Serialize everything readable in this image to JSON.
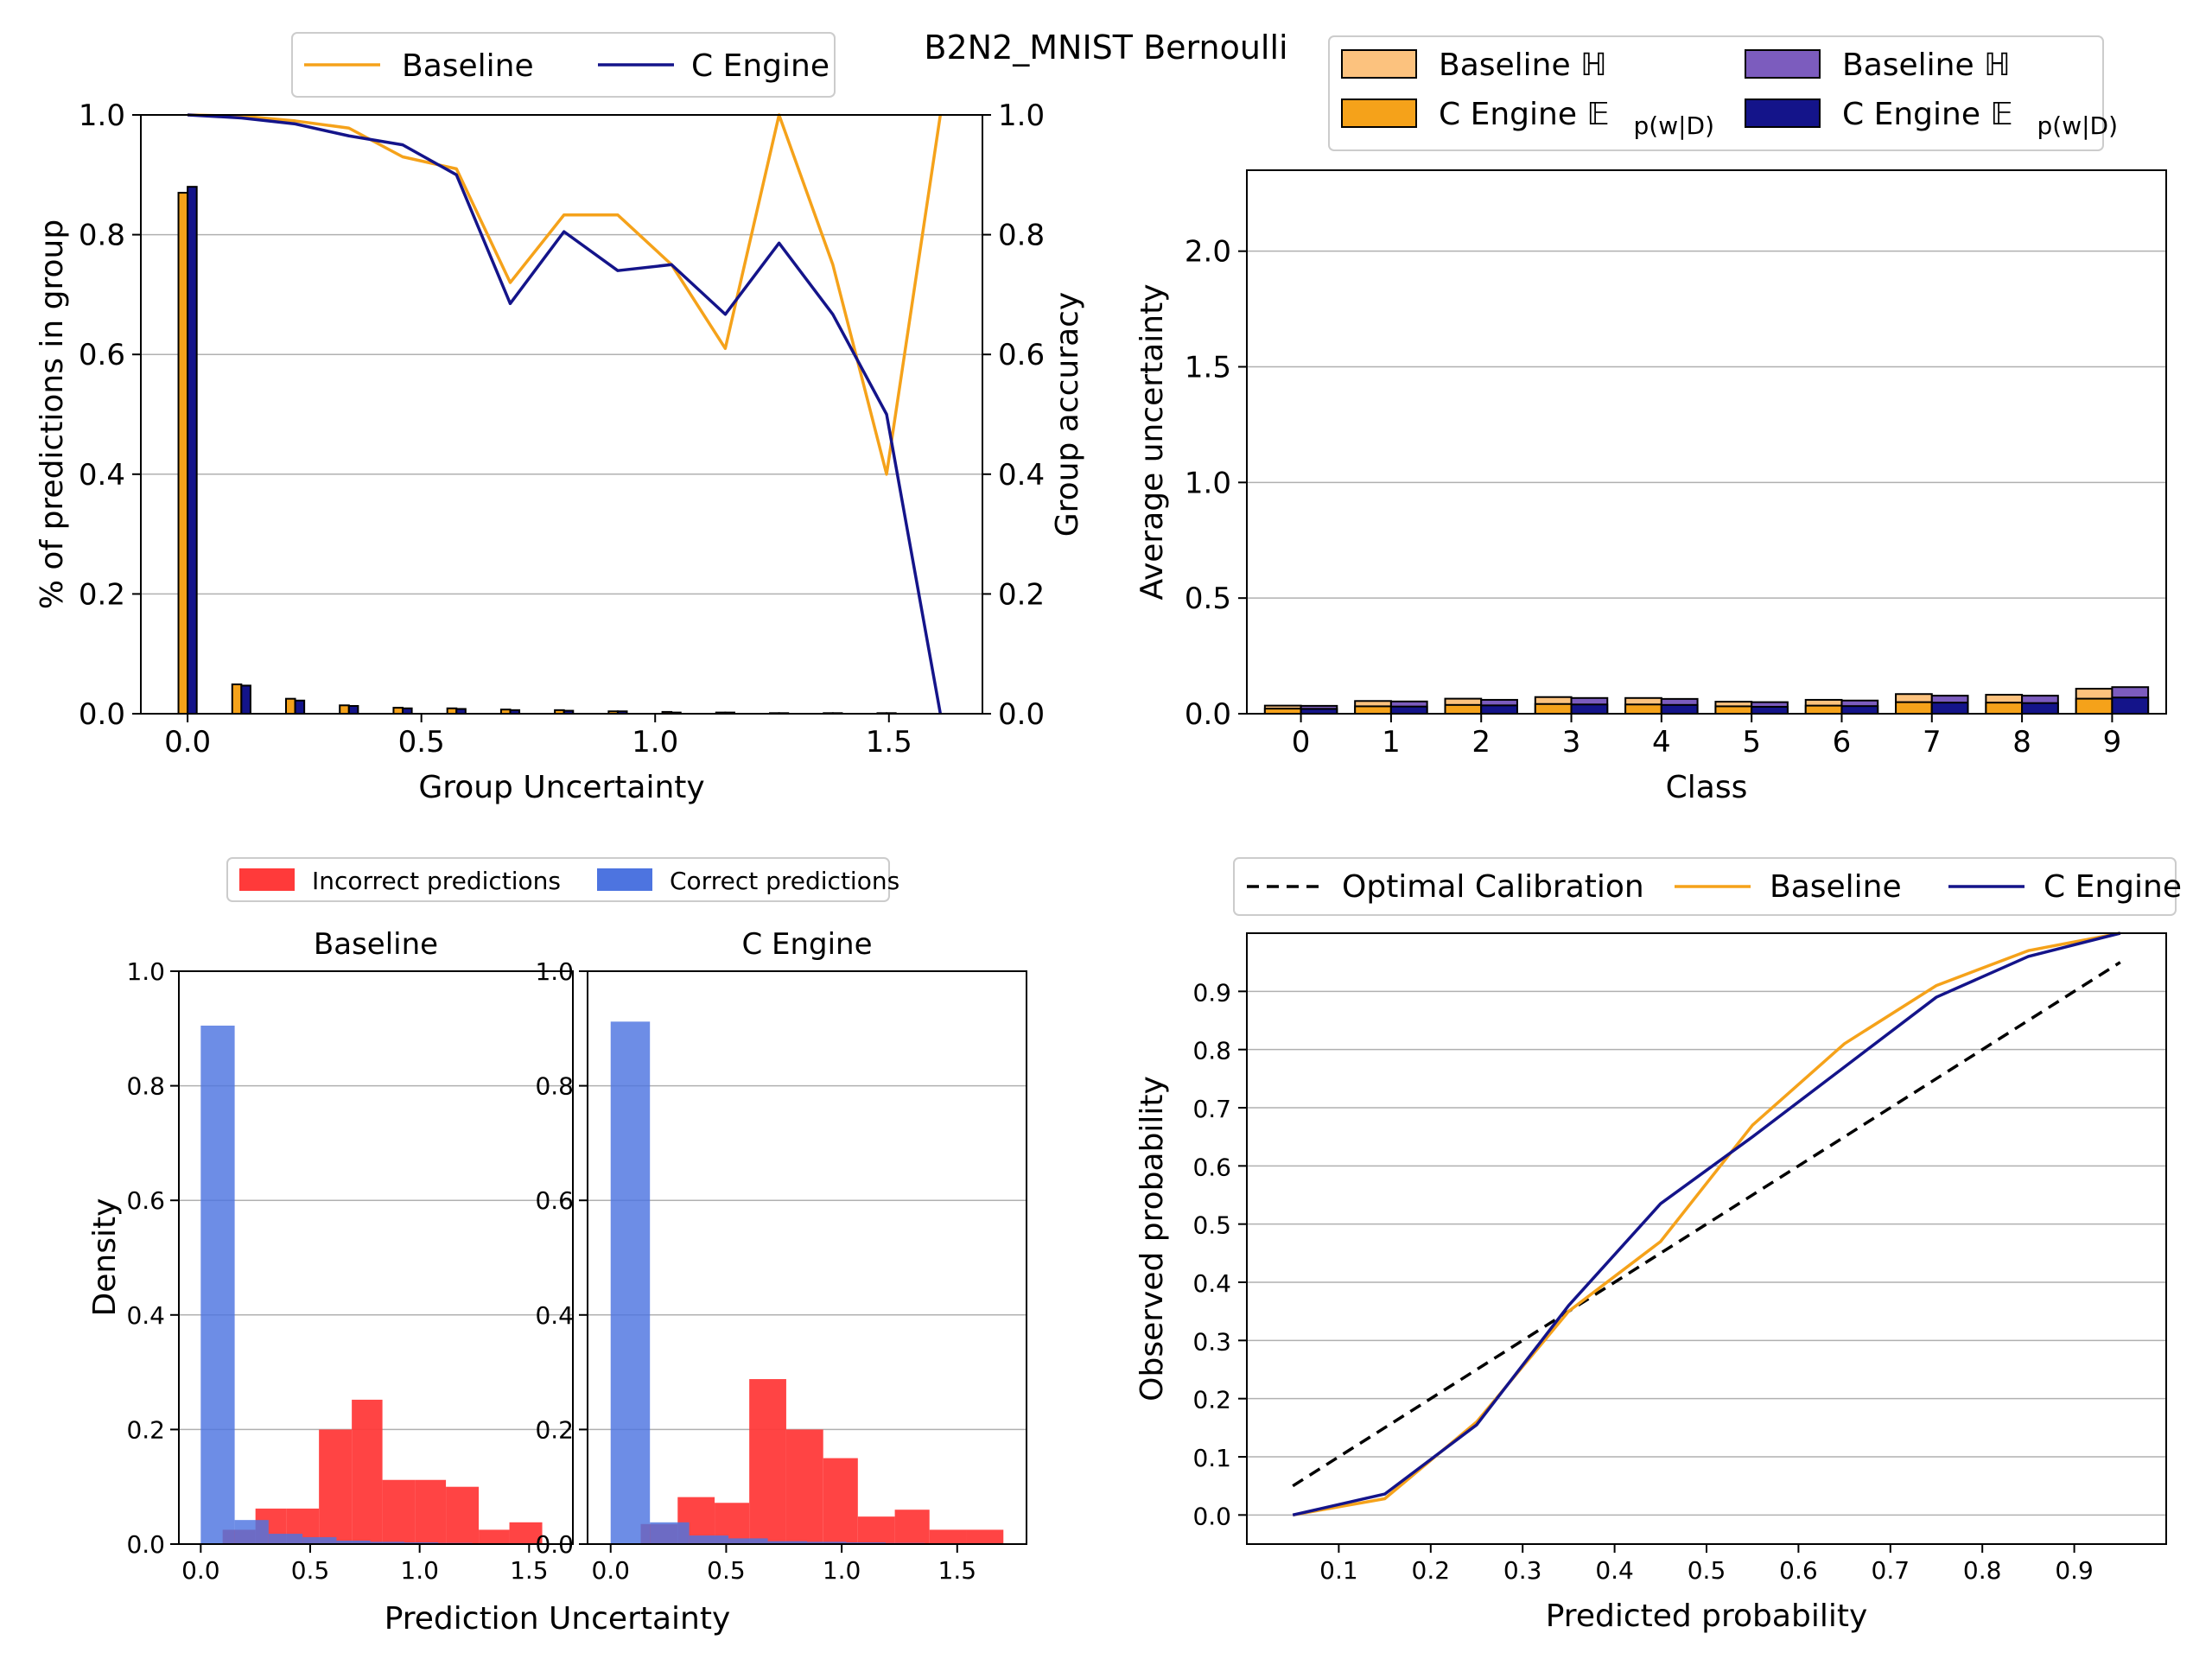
{
  "title": "B2N2_MNIST Bernoulli",
  "colors": {
    "baseline": "#f5a21a",
    "cengine": "#14148a",
    "baseline_h": "#fcc27e",
    "cengine_h": "#7c5cbe",
    "incorrect": "#ff3a3a",
    "correct": "#4d74e0"
  },
  "chart_data": [
    {
      "id": "group-uncertainty",
      "type": "bar",
      "xlabel": "Group Uncertainty",
      "ylabel": "% of predictions in group",
      "y2label": "Group accuracy",
      "xlim": [
        -0.1,
        1.7
      ],
      "ylim": [
        0,
        1.0
      ],
      "y2lim": [
        0,
        1.0
      ],
      "xticks": [
        "0.0",
        "0.5",
        "1.0",
        "1.5"
      ],
      "yticks": [
        "0.0",
        "0.2",
        "0.4",
        "0.6",
        "0.8",
        "1.0"
      ],
      "y2ticks": [
        "0.0",
        "0.2",
        "0.4",
        "0.6",
        "0.8",
        "1.0"
      ],
      "grid": true,
      "legend": [
        "Baseline",
        "C Engine"
      ],
      "bar_x": [
        0.0,
        0.115,
        0.23,
        0.345,
        0.46,
        0.575,
        0.69,
        0.805,
        0.92,
        1.035,
        1.15,
        1.265,
        1.38,
        1.495
      ],
      "bar_series": [
        {
          "name": "Baseline",
          "values": [
            0.87,
            0.049,
            0.025,
            0.014,
            0.01,
            0.009,
            0.007,
            0.006,
            0.004,
            0.003,
            0.002,
            0.001,
            0.001,
            0.001
          ]
        },
        {
          "name": "C Engine",
          "values": [
            0.88,
            0.047,
            0.022,
            0.013,
            0.009,
            0.008,
            0.006,
            0.005,
            0.004,
            0.002,
            0.002,
            0.001,
            0.001,
            0.001
          ]
        }
      ],
      "line_series": [
        {
          "name": "Baseline",
          "x": [
            0.0,
            0.115,
            0.23,
            0.345,
            0.46,
            0.575,
            0.69,
            0.805,
            0.92,
            1.035,
            1.15,
            1.265,
            1.38,
            1.495,
            1.61
          ],
          "y": [
            1.0,
            0.998,
            0.99,
            0.978,
            0.93,
            0.91,
            0.72,
            0.833,
            0.833,
            0.75,
            0.61,
            1.0,
            0.75,
            0.4,
            1.0
          ]
        },
        {
          "name": "C Engine",
          "x": [
            0.0,
            0.115,
            0.23,
            0.345,
            0.46,
            0.575,
            0.69,
            0.805,
            0.92,
            1.035,
            1.15,
            1.265,
            1.38,
            1.495,
            1.61
          ],
          "y": [
            1.0,
            0.995,
            0.985,
            0.965,
            0.95,
            0.9,
            0.685,
            0.805,
            0.74,
            0.75,
            0.667,
            0.786,
            0.667,
            0.5,
            0.0
          ]
        }
      ]
    },
    {
      "id": "class-uncertainty",
      "type": "bar",
      "xlabel": "Class",
      "ylabel": "Average uncertainty",
      "ylim": [
        0,
        2.35
      ],
      "yticks": [
        "0.0",
        "0.5",
        "1.0",
        "1.5",
        "2.0"
      ],
      "categories": [
        "0",
        "1",
        "2",
        "3",
        "4",
        "5",
        "6",
        "7",
        "8",
        "9"
      ],
      "grid": true,
      "legend_labels": [
        "Baseline",
        "C Engine",
        "Baseline",
        "C Engine"
      ],
      "series": [
        {
          "name": "Baseline ℍ",
          "values": [
            0.035,
            0.055,
            0.065,
            0.072,
            0.068,
            0.052,
            0.06,
            0.085,
            0.082,
            0.108
          ]
        },
        {
          "name": "Baseline 𝔼p(w|D)",
          "values": [
            0.022,
            0.032,
            0.038,
            0.042,
            0.04,
            0.032,
            0.035,
            0.05,
            0.048,
            0.065
          ]
        },
        {
          "name": "C Engine ℍ",
          "values": [
            0.034,
            0.053,
            0.06,
            0.068,
            0.064,
            0.05,
            0.057,
            0.078,
            0.078,
            0.115
          ]
        },
        {
          "name": "C Engine 𝔼p(w|D)",
          "values": [
            0.021,
            0.031,
            0.036,
            0.04,
            0.038,
            0.03,
            0.033,
            0.048,
            0.046,
            0.07
          ]
        }
      ]
    },
    {
      "id": "baseline-density",
      "type": "bar",
      "subtitle": "Baseline",
      "ylabel": "Density",
      "xlim": [
        -0.1,
        1.7
      ],
      "ylim": [
        0,
        1.0
      ],
      "xticks": [
        "0.0",
        "0.5",
        "1.0",
        "1.5"
      ],
      "yticks": [
        "0.0",
        "0.2",
        "0.4",
        "0.6",
        "0.8",
        "1.0"
      ],
      "grid": true,
      "legend": [
        "Incorrect predictions",
        "Correct predictions"
      ],
      "incorrect": {
        "edges": [
          0.1,
          0.25,
          0.39,
          0.54,
          0.69,
          0.83,
          0.98,
          1.12,
          1.27,
          1.41,
          1.56
        ],
        "values": [
          0.025,
          0.062,
          0.062,
          0.2,
          0.252,
          0.112,
          0.112,
          0.1,
          0.025,
          0.038
        ]
      },
      "correct": {
        "edges": [
          0.0,
          0.155,
          0.31,
          0.465,
          0.62,
          0.775,
          0.93,
          1.085,
          1.24,
          1.395,
          1.55
        ],
        "values": [
          0.905,
          0.042,
          0.018,
          0.012,
          0.006,
          0.004,
          0.003,
          0.002,
          0.001,
          0.001
        ]
      }
    },
    {
      "id": "cengine-density",
      "type": "bar",
      "subtitle": "C Engine",
      "xlabel": "Prediction Uncertainty",
      "xlim": [
        -0.1,
        1.8
      ],
      "ylim": [
        0,
        1.0
      ],
      "xticks": [
        "0.0",
        "0.5",
        "1.0",
        "1.5"
      ],
      "yticks": [
        "0.0",
        "0.2",
        "0.4",
        "0.6",
        "0.8",
        "1.0"
      ],
      "grid": true,
      "incorrect": {
        "edges": [
          0.13,
          0.29,
          0.45,
          0.6,
          0.76,
          0.92,
          1.07,
          1.23,
          1.38,
          1.54,
          1.7
        ],
        "values": [
          0.035,
          0.082,
          0.072,
          0.288,
          0.2,
          0.15,
          0.048,
          0.06,
          0.025,
          0.025
        ]
      },
      "correct": {
        "edges": [
          0.0,
          0.17,
          0.34,
          0.51,
          0.68,
          0.85,
          1.02,
          1.19,
          1.36,
          1.53,
          1.7
        ],
        "values": [
          0.912,
          0.038,
          0.015,
          0.01,
          0.005,
          0.004,
          0.003,
          0.002,
          0.001,
          0.001
        ]
      }
    },
    {
      "id": "calibration",
      "type": "line",
      "xlabel": "Predicted probability",
      "ylabel": "Observed probability",
      "xlim": [
        0.0,
        1.0
      ],
      "ylim": [
        -0.05,
        1.0
      ],
      "xticks": [
        "0.1",
        "0.2",
        "0.3",
        "0.4",
        "0.5",
        "0.6",
        "0.7",
        "0.8",
        "0.9"
      ],
      "yticks": [
        "0.0",
        "0.1",
        "0.2",
        "0.3",
        "0.4",
        "0.5",
        "0.6",
        "0.7",
        "0.8",
        "0.9"
      ],
      "grid": true,
      "legend": [
        "Optimal Calibration",
        "Baseline",
        "C Engine"
      ],
      "series": [
        {
          "name": "Optimal Calibration",
          "x": [
            0.05,
            0.95
          ],
          "y": [
            0.05,
            0.95
          ]
        },
        {
          "name": "Baseline",
          "x": [
            0.05,
            0.15,
            0.25,
            0.35,
            0.45,
            0.55,
            0.65,
            0.75,
            0.85,
            0.95
          ],
          "y": [
            0.0,
            0.028,
            0.16,
            0.35,
            0.47,
            0.67,
            0.81,
            0.91,
            0.97,
            1.0
          ]
        },
        {
          "name": "C Engine",
          "x": [
            0.05,
            0.15,
            0.25,
            0.35,
            0.45,
            0.55,
            0.65,
            0.75,
            0.85,
            0.95
          ],
          "y": [
            0.0,
            0.036,
            0.155,
            0.36,
            0.535,
            0.65,
            0.77,
            0.89,
            0.96,
            1.0
          ]
        }
      ]
    }
  ]
}
